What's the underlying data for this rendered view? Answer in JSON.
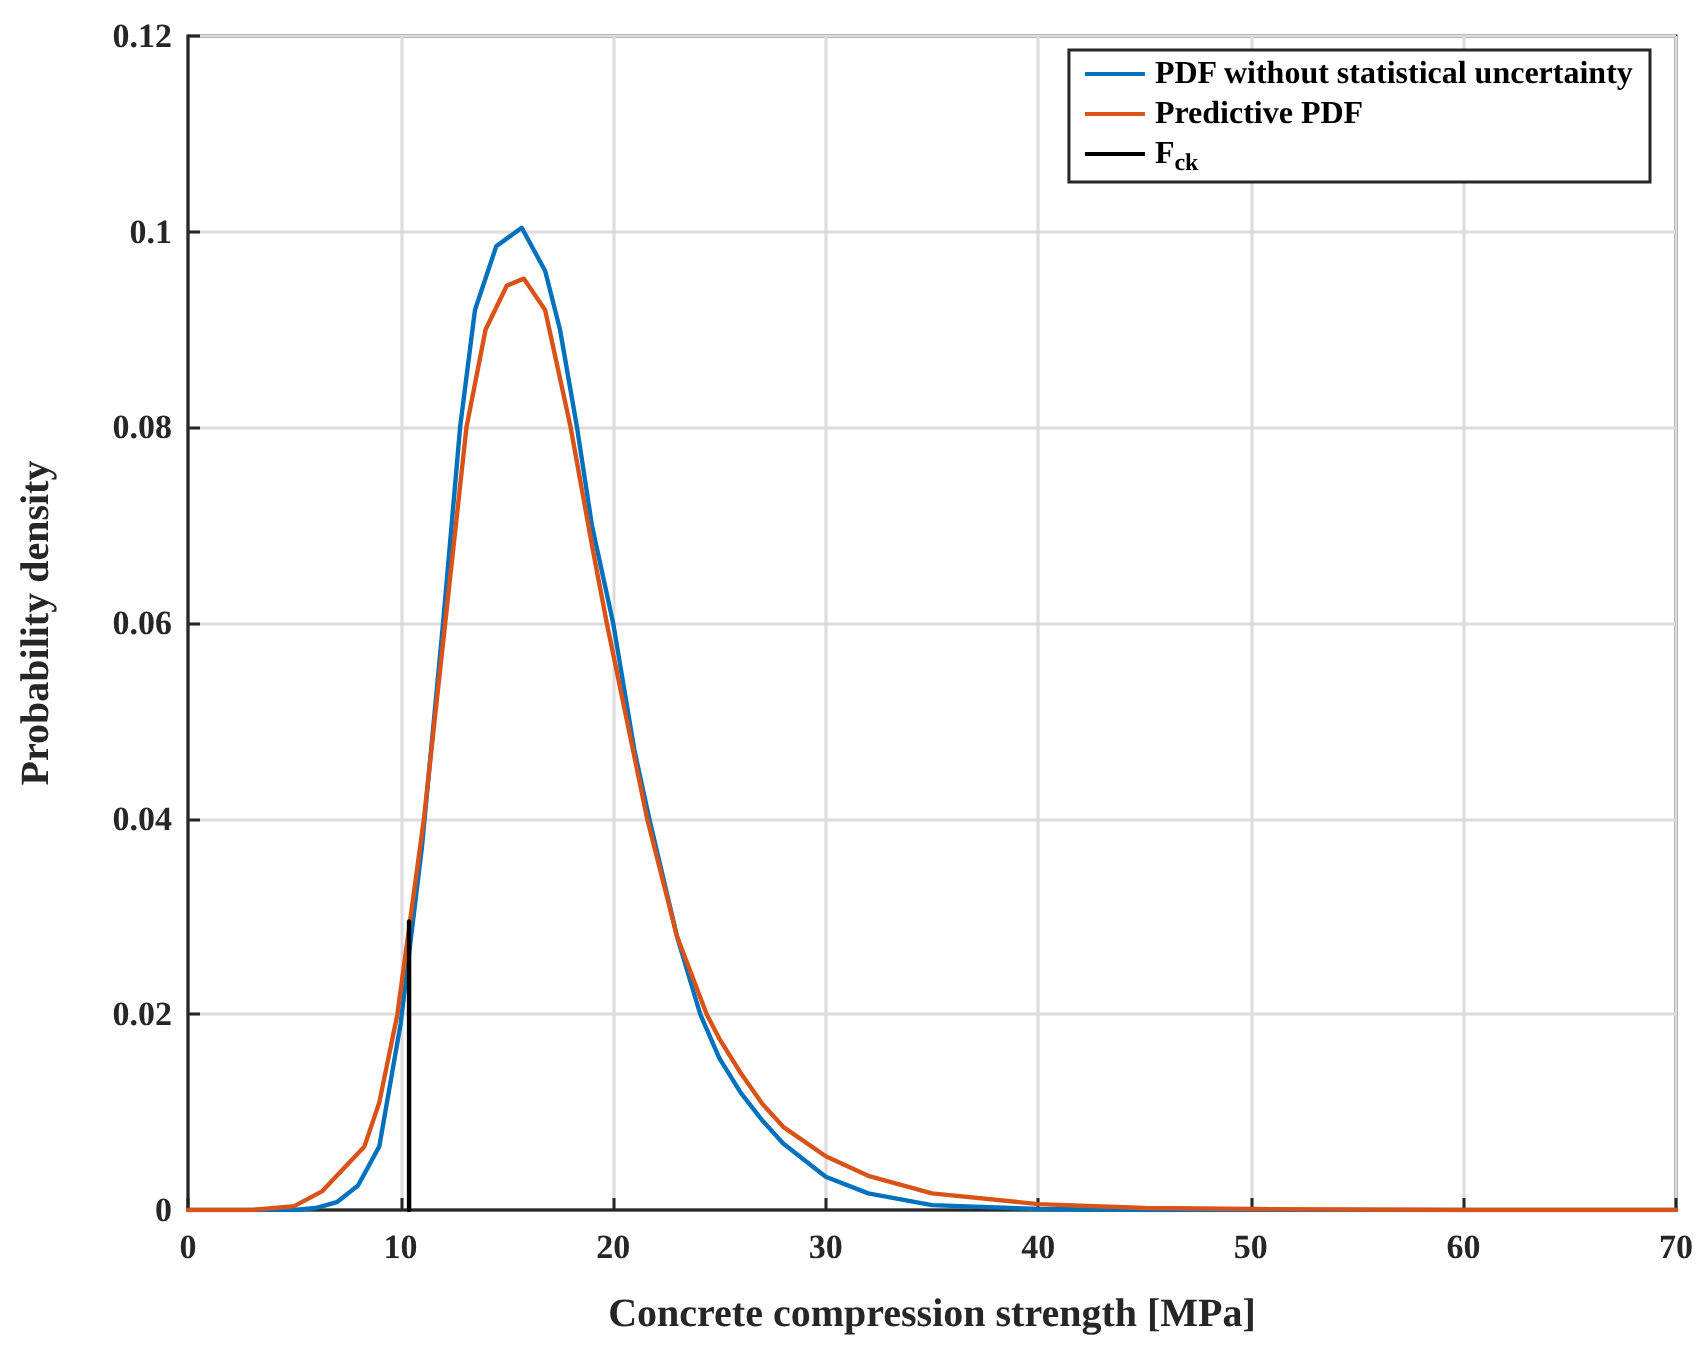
{
  "chart_data": {
    "type": "line",
    "xlabel": "Concrete compression strength [MPa]",
    "ylabel": "Probability density",
    "xlim": [
      0,
      70
    ],
    "xticks": [
      0,
      10,
      20,
      30,
      40,
      50,
      60,
      70
    ],
    "ylim": [
      0,
      0.12
    ],
    "yticks": [
      0,
      0.02,
      0.04,
      0.06,
      0.08,
      0.1,
      0.12
    ],
    "grid": true,
    "legend": "top right",
    "marker": "none",
    "line_style": "solid",
    "series": [
      {
        "name": "PDF without statistical uncertainty",
        "color": "#0072bd",
        "x": [
          0,
          5,
          6,
          7,
          8,
          9,
          10,
          11,
          12,
          12.8,
          13.5,
          14.5,
          15.7,
          16.8,
          17.5,
          18.3,
          19,
          20,
          21,
          21.7,
          23,
          24.1,
          25,
          26,
          27,
          28,
          30,
          32,
          35,
          40,
          45,
          70
        ],
        "values": [
          0,
          0,
          0.0002,
          0.0008,
          0.0025,
          0.0065,
          0.019,
          0.037,
          0.06,
          0.08,
          0.092,
          0.0985,
          0.1004,
          0.096,
          0.09,
          0.08,
          0.07,
          0.06,
          0.047,
          0.04,
          0.028,
          0.02,
          0.0155,
          0.012,
          0.0092,
          0.0068,
          0.0034,
          0.0017,
          0.0005,
          0.0001,
          0,
          0
        ]
      },
      {
        "name": "Predictive PDF",
        "color": "#d95319",
        "x": [
          0,
          3,
          5,
          6.3,
          7,
          8.3,
          9,
          9.85,
          11.1,
          12.1,
          13.1,
          14,
          15,
          15.8,
          16.8,
          18,
          19,
          19.7,
          21.6,
          23,
          24.4,
          25,
          26,
          27,
          28,
          30,
          32,
          35,
          40,
          45,
          50,
          60,
          70
        ],
        "values": [
          0,
          0,
          0.0004,
          0.0019,
          0.0035,
          0.0065,
          0.011,
          0.02,
          0.04,
          0.06,
          0.08,
          0.09,
          0.0945,
          0.0952,
          0.092,
          0.08,
          0.068,
          0.06,
          0.04,
          0.028,
          0.02,
          0.0175,
          0.014,
          0.0109,
          0.0085,
          0.0055,
          0.0035,
          0.0017,
          0.0006,
          0.0002,
          0.0001,
          0,
          0
        ]
      },
      {
        "name": "F$_{ck}$",
        "color": "#000000",
        "x": [
          10.4,
          10.4
        ],
        "values": [
          0,
          0.0295
        ]
      }
    ]
  }
}
